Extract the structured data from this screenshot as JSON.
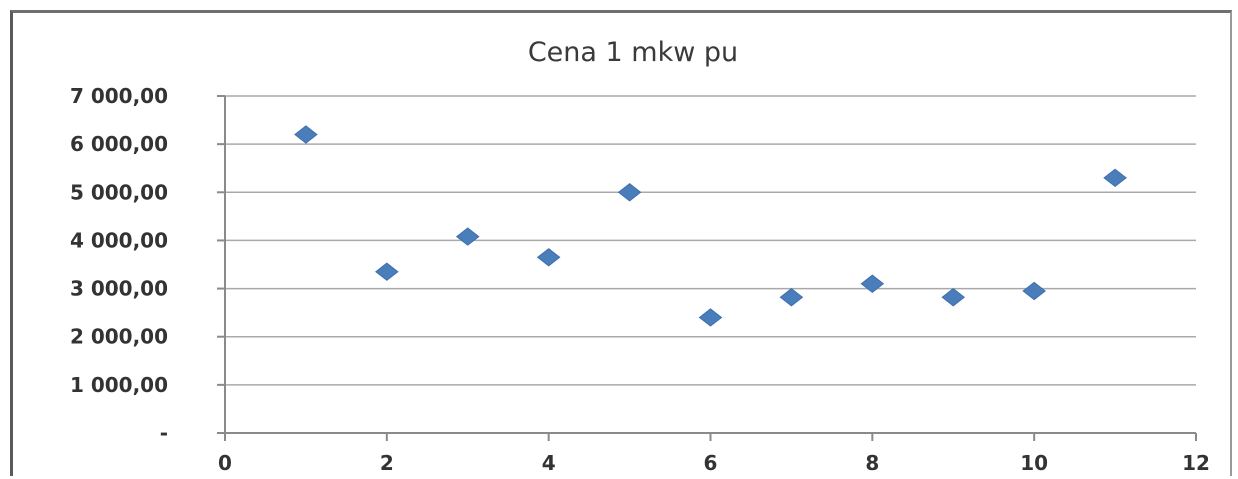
{
  "chart_data": {
    "type": "scatter",
    "title": "Cena 1 mkw pu",
    "xlabel": "",
    "ylabel": "",
    "xlim": [
      0,
      12
    ],
    "ylim": [
      0,
      7000
    ],
    "x_ticks": [
      0,
      2,
      4,
      6,
      8,
      10,
      12
    ],
    "x_tick_labels": [
      "0",
      "2",
      "4",
      "6",
      "8",
      "10",
      "12"
    ],
    "y_ticks": [
      0,
      1000,
      2000,
      3000,
      4000,
      5000,
      6000,
      7000
    ],
    "y_tick_labels": [
      "-",
      "1 000,00",
      "2 000,00",
      "3 000,00",
      "4 000,00",
      "5 000,00",
      "6 000,00",
      "7 000,00"
    ],
    "grid": "horizontal",
    "legend": "none",
    "marker": "diamond",
    "marker_color": "#4a7ebb",
    "points": [
      {
        "x": 1,
        "y": 6200
      },
      {
        "x": 2,
        "y": 3350
      },
      {
        "x": 3,
        "y": 4080
      },
      {
        "x": 4,
        "y": 3650
      },
      {
        "x": 5,
        "y": 5000
      },
      {
        "x": 6,
        "y": 2400
      },
      {
        "x": 7,
        "y": 2820
      },
      {
        "x": 8,
        "y": 3100
      },
      {
        "x": 9,
        "y": 2820
      },
      {
        "x": 10,
        "y": 2950
      },
      {
        "x": 11,
        "y": 5300
      }
    ]
  }
}
